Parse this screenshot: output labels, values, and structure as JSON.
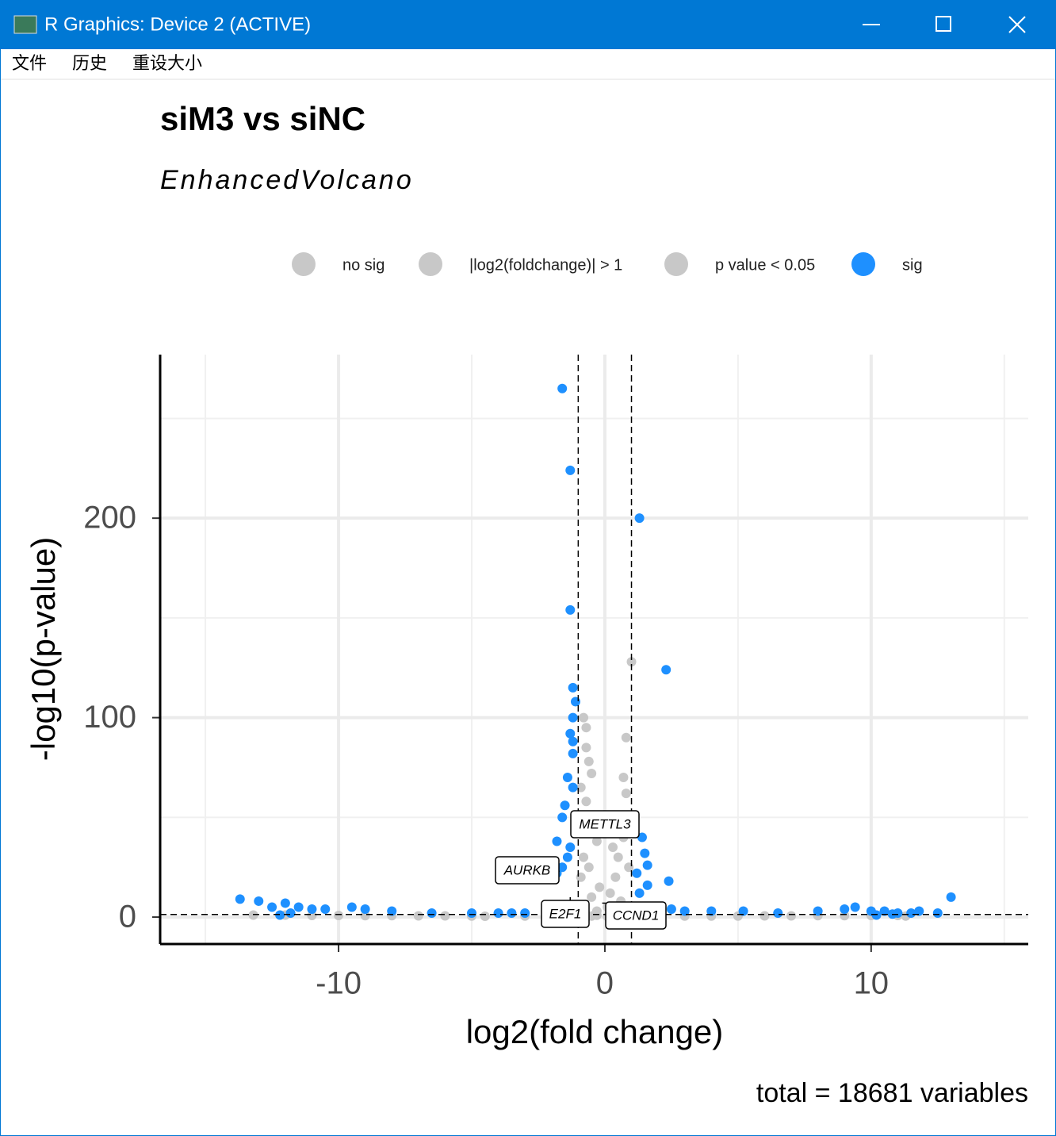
{
  "window": {
    "title": "R Graphics: Device 2 (ACTIVE)",
    "menu": [
      "文件",
      "历史",
      "重设大小"
    ]
  },
  "chart_data": {
    "type": "scatter",
    "title": "siM3 vs siNC",
    "subtitle": "EnhancedVolcano",
    "x_label": "log2(fold change)",
    "y_label": "-log10(p-value)",
    "caption": "total = 18681 variables",
    "xlim": [
      -16.7,
      15.9
    ],
    "ylim": [
      -13.5,
      282
    ],
    "xticks": [
      -10,
      0,
      10
    ],
    "yticks": [
      0,
      100,
      200
    ],
    "x_minor_grid": [
      -15,
      -5,
      5,
      15
    ],
    "y_minor_grid": [
      50,
      150,
      250
    ],
    "grid": true,
    "legend_position": "top",
    "cutoff_x": [
      -1,
      1
    ],
    "cutoff_y": 1.3,
    "series": [
      {
        "name": "no sig",
        "color": "#c8c8c8",
        "x": [
          -0.5,
          0.3,
          0.7,
          -0.8,
          0.1,
          -0.3,
          0.5
        ],
        "values": [
          0.5,
          0.8,
          1,
          0.3,
          0.2,
          0.9,
          0.4
        ]
      },
      {
        "name": "|log2(foldchange)| > 1",
        "color": "#c8c8c8",
        "x": [
          -13.2,
          -12,
          -11,
          -10,
          -9,
          -8,
          -7,
          -6,
          -5,
          -4.5,
          -3,
          -2,
          2,
          3,
          4,
          5,
          6,
          7,
          8,
          9,
          10,
          11,
          11.3
        ],
        "values": [
          1,
          1,
          0.8,
          0.8,
          0.7,
          0.7,
          0.6,
          0.6,
          0.5,
          0.4,
          0.5,
          0.5,
          0.5,
          0.5,
          0.5,
          0.5,
          0.6,
          0.6,
          0.7,
          0.7,
          0.8,
          0.8,
          0.5
        ]
      },
      {
        "name": "p value < 0.05",
        "color": "#c8c8c8",
        "x": [
          -0.8,
          -0.7,
          -0.7,
          -0.6,
          -0.5,
          -0.9,
          -0.7,
          0.8,
          0.7,
          0.8,
          1.0,
          0.6,
          -0.5,
          -0.3,
          0.3,
          0.5,
          -0.6,
          0.4,
          -0.2,
          0.2,
          -0.5,
          0.6,
          0.1,
          -0.3,
          0.5,
          -0.9,
          0.9,
          -0.8,
          0.7
        ],
        "values": [
          100,
          95,
          85,
          78,
          72,
          65,
          58,
          90,
          70,
          62,
          128,
          50,
          45,
          38,
          35,
          30,
          25,
          20,
          15,
          12,
          10,
          8,
          5,
          3,
          2,
          20,
          25,
          30,
          40
        ]
      },
      {
        "name": "sig",
        "color": "#1e90ff",
        "x": [
          -1.6,
          -1.3,
          1.3,
          -1.3,
          2.3,
          -1.2,
          -1.1,
          -1.2,
          -1.3,
          -1.2,
          -1.4,
          -1.2,
          -1.5,
          -1.6,
          -1.8,
          -1.4,
          -1.6,
          -1.8,
          1.4,
          1.5,
          1.6,
          1.2,
          1.6,
          2.4,
          1.3,
          -13.7,
          -13,
          -12.5,
          -12,
          -11.5,
          -11,
          -10.5,
          -9.5,
          -9,
          -8,
          -6.5,
          -5,
          -4,
          -3.5,
          -3,
          2.5,
          3,
          4,
          5.2,
          6.5,
          8,
          9,
          9.4,
          10,
          10.5,
          11,
          11.5,
          11.8,
          12.5,
          13,
          -11.8,
          -12.2,
          10.2,
          10.8,
          -1.2,
          -1.1,
          -1.3
        ],
        "values": [
          265,
          224,
          200,
          154,
          124,
          115,
          108,
          100,
          92,
          82,
          70,
          65,
          56,
          50,
          38,
          30,
          25,
          22,
          40,
          32,
          26,
          22,
          16,
          18,
          12,
          9,
          8,
          5,
          7,
          5,
          4,
          4,
          5,
          4,
          3,
          2,
          2,
          2,
          2,
          2,
          4,
          3,
          3,
          3,
          2,
          3,
          4,
          5,
          3,
          3,
          2,
          2,
          3,
          2,
          10,
          2,
          1,
          1,
          1.5,
          88,
          42,
          35
        ]
      }
    ],
    "annotations": [
      {
        "label": "METTL3",
        "x": -1.0,
        "y": 45
      },
      {
        "label": "AURKB",
        "x": -1.7,
        "y": 23
      },
      {
        "label": "E2F1",
        "x": -1.3,
        "y": 10
      },
      {
        "label": "CCND1",
        "x": -0.1,
        "y": 7
      }
    ]
  }
}
